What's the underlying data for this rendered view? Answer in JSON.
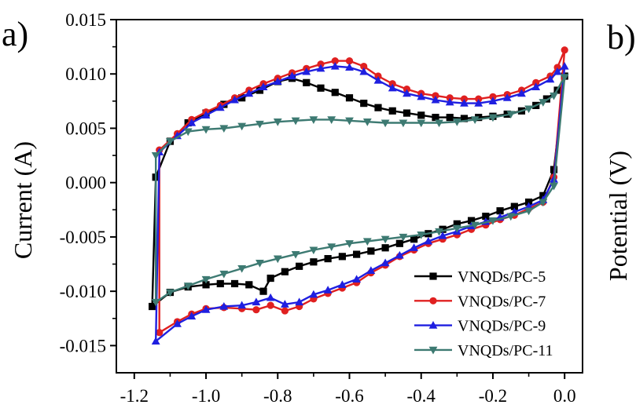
{
  "panels": {
    "a_label": "a)",
    "b_label": "b)",
    "b_ylabel": "Potential (V)"
  },
  "chart_data": {
    "type": "line",
    "title": "",
    "xlabel": "",
    "ylabel": "Current (A)",
    "xlim": [
      -1.25,
      0.05
    ],
    "ylim": [
      -0.0175,
      0.015
    ],
    "xticks": [
      -1.2,
      -1.0,
      -0.8,
      -0.6,
      -0.4,
      -0.2,
      0.0
    ],
    "xtick_labels": [
      "-1.2",
      "-1.0",
      "-0.8",
      "-0.6",
      "-0.4",
      "-0.2",
      "0.0"
    ],
    "yticks": [
      0.015,
      0.01,
      0.005,
      0.0,
      -0.005,
      -0.01,
      -0.015
    ],
    "ytick_labels": [
      "0.015",
      "0.010",
      "0.005",
      "0.000",
      "-0.005",
      "-0.010",
      "-0.015"
    ],
    "grid": false,
    "legend_position": "bottom-right",
    "series": [
      {
        "name": "VNQDs/PC-5",
        "color": "#000000",
        "marker": "square",
        "x": [
          -1.14,
          -1.1,
          -1.05,
          -1.0,
          -0.95,
          -0.9,
          -0.85,
          -0.8,
          -0.76,
          -0.72,
          -0.68,
          -0.64,
          -0.6,
          -0.56,
          -0.52,
          -0.48,
          -0.44,
          -0.4,
          -0.36,
          -0.32,
          -0.28,
          -0.24,
          -0.2,
          -0.16,
          -0.12,
          -0.08,
          -0.05,
          -0.02,
          0.0,
          -0.03,
          -0.06,
          -0.1,
          -0.14,
          -0.18,
          -0.22,
          -0.26,
          -0.3,
          -0.34,
          -0.38,
          -0.42,
          -0.46,
          -0.5,
          -0.54,
          -0.58,
          -0.62,
          -0.66,
          -0.7,
          -0.74,
          -0.78,
          -0.82,
          -0.84,
          -0.88,
          -0.92,
          -0.96,
          -1.0,
          -1.05,
          -1.1,
          -1.15
        ],
        "y": [
          0.0005,
          0.0038,
          0.0055,
          0.0064,
          0.0072,
          0.0078,
          0.0085,
          0.0093,
          0.0096,
          0.0092,
          0.0087,
          0.0083,
          0.0078,
          0.0073,
          0.0069,
          0.0066,
          0.0064,
          0.0062,
          0.006,
          0.006,
          0.0059,
          0.006,
          0.0061,
          0.0063,
          0.0066,
          0.0071,
          0.0077,
          0.0085,
          0.0098,
          0.0012,
          -0.0012,
          -0.0018,
          -0.0022,
          -0.0026,
          -0.0031,
          -0.0035,
          -0.0038,
          -0.0043,
          -0.0047,
          -0.0052,
          -0.0056,
          -0.006,
          -0.0063,
          -0.0066,
          -0.0068,
          -0.007,
          -0.0073,
          -0.0077,
          -0.0082,
          -0.0088,
          -0.01,
          -0.0094,
          -0.0093,
          -0.0093,
          -0.0094,
          -0.0096,
          -0.0101,
          -0.0114
        ]
      },
      {
        "name": "VNQDs/PC-7",
        "color": "#e02020",
        "marker": "circle",
        "x": [
          -1.13,
          -1.08,
          -1.04,
          -1.0,
          -0.96,
          -0.92,
          -0.88,
          -0.84,
          -0.8,
          -0.76,
          -0.72,
          -0.68,
          -0.64,
          -0.6,
          -0.56,
          -0.52,
          -0.48,
          -0.44,
          -0.4,
          -0.36,
          -0.32,
          -0.28,
          -0.24,
          -0.2,
          -0.16,
          -0.12,
          -0.08,
          -0.04,
          -0.02,
          0.0,
          -0.03,
          -0.06,
          -0.1,
          -0.14,
          -0.18,
          -0.22,
          -0.26,
          -0.3,
          -0.34,
          -0.38,
          -0.42,
          -0.46,
          -0.5,
          -0.54,
          -0.58,
          -0.62,
          -0.66,
          -0.7,
          -0.74,
          -0.78,
          -0.82,
          -0.86,
          -0.9,
          -0.95,
          -1.0,
          -1.04,
          -1.08,
          -1.13
        ],
        "y": [
          0.003,
          0.0045,
          0.0058,
          0.0065,
          0.0071,
          0.0078,
          0.0085,
          0.0091,
          0.0096,
          0.0101,
          0.0105,
          0.0109,
          0.0112,
          0.0112,
          0.0107,
          0.0098,
          0.0091,
          0.0086,
          0.0082,
          0.008,
          0.0078,
          0.0077,
          0.0077,
          0.0079,
          0.0081,
          0.0085,
          0.0092,
          0.0098,
          0.0106,
          0.0122,
          0.0005,
          -0.0018,
          -0.0024,
          -0.003,
          -0.0034,
          -0.0039,
          -0.0043,
          -0.0048,
          -0.0052,
          -0.0056,
          -0.0062,
          -0.0068,
          -0.0076,
          -0.0083,
          -0.0092,
          -0.0097,
          -0.0102,
          -0.0107,
          -0.0114,
          -0.0118,
          -0.0113,
          -0.0117,
          -0.0116,
          -0.0115,
          -0.0116,
          -0.0121,
          -0.0128,
          -0.0138
        ]
      },
      {
        "name": "VNQDs/PC-9",
        "color": "#1f1fe0",
        "marker": "triangle-up",
        "x": [
          -1.13,
          -1.08,
          -1.04,
          -1.0,
          -0.96,
          -0.92,
          -0.88,
          -0.84,
          -0.8,
          -0.76,
          -0.72,
          -0.68,
          -0.64,
          -0.6,
          -0.56,
          -0.52,
          -0.48,
          -0.44,
          -0.4,
          -0.36,
          -0.32,
          -0.28,
          -0.24,
          -0.2,
          -0.16,
          -0.12,
          -0.08,
          -0.04,
          -0.02,
          0.0,
          -0.03,
          -0.06,
          -0.1,
          -0.14,
          -0.18,
          -0.22,
          -0.26,
          -0.3,
          -0.34,
          -0.38,
          -0.42,
          -0.46,
          -0.5,
          -0.54,
          -0.58,
          -0.62,
          -0.66,
          -0.7,
          -0.74,
          -0.78,
          -0.82,
          -0.86,
          -0.9,
          -0.95,
          -1.0,
          -1.04,
          -1.08,
          -1.14
        ],
        "y": [
          0.0028,
          0.0043,
          0.0055,
          0.0062,
          0.0069,
          0.0076,
          0.0082,
          0.0088,
          0.0093,
          0.0098,
          0.0102,
          0.0105,
          0.0107,
          0.0106,
          0.0102,
          0.0094,
          0.0087,
          0.0082,
          0.0079,
          0.0076,
          0.0074,
          0.0073,
          0.0073,
          0.0075,
          0.0078,
          0.0082,
          0.0088,
          0.0095,
          0.0102,
          0.0107,
          0.0003,
          -0.0016,
          -0.0022,
          -0.0027,
          -0.0032,
          -0.0036,
          -0.004,
          -0.0045,
          -0.0049,
          -0.0054,
          -0.006,
          -0.0067,
          -0.0074,
          -0.0081,
          -0.0089,
          -0.0094,
          -0.0099,
          -0.0103,
          -0.011,
          -0.0112,
          -0.0106,
          -0.011,
          -0.0113,
          -0.0114,
          -0.0117,
          -0.0123,
          -0.013,
          -0.0146
        ]
      },
      {
        "name": "VNQDs/PC-11",
        "color": "#3d7a72",
        "marker": "triangle-down",
        "x": [
          -1.14,
          -1.1,
          -1.05,
          -1.0,
          -0.95,
          -0.9,
          -0.85,
          -0.8,
          -0.75,
          -0.7,
          -0.65,
          -0.6,
          -0.55,
          -0.5,
          -0.45,
          -0.4,
          -0.35,
          -0.3,
          -0.25,
          -0.2,
          -0.15,
          -0.1,
          -0.06,
          -0.03,
          0.0,
          -0.03,
          -0.06,
          -0.1,
          -0.15,
          -0.2,
          -0.25,
          -0.3,
          -0.35,
          -0.4,
          -0.45,
          -0.5,
          -0.55,
          -0.6,
          -0.65,
          -0.7,
          -0.75,
          -0.8,
          -0.85,
          -0.9,
          -0.95,
          -1.0,
          -1.05,
          -1.1,
          -1.14
        ],
        "y": [
          0.0025,
          0.0038,
          0.0047,
          0.0049,
          0.005,
          0.0052,
          0.0054,
          0.0056,
          0.0057,
          0.0058,
          0.0058,
          0.0057,
          0.0056,
          0.0055,
          0.0055,
          0.0055,
          0.0055,
          0.0056,
          0.0058,
          0.006,
          0.0063,
          0.0068,
          0.0074,
          0.008,
          0.0097,
          -0.0003,
          -0.0018,
          -0.0026,
          -0.0031,
          -0.0035,
          -0.0039,
          -0.0042,
          -0.0045,
          -0.0048,
          -0.005,
          -0.0052,
          -0.0054,
          -0.0056,
          -0.0059,
          -0.0062,
          -0.0066,
          -0.007,
          -0.0074,
          -0.0079,
          -0.0084,
          -0.0089,
          -0.0095,
          -0.0101,
          -0.011
        ]
      }
    ]
  }
}
